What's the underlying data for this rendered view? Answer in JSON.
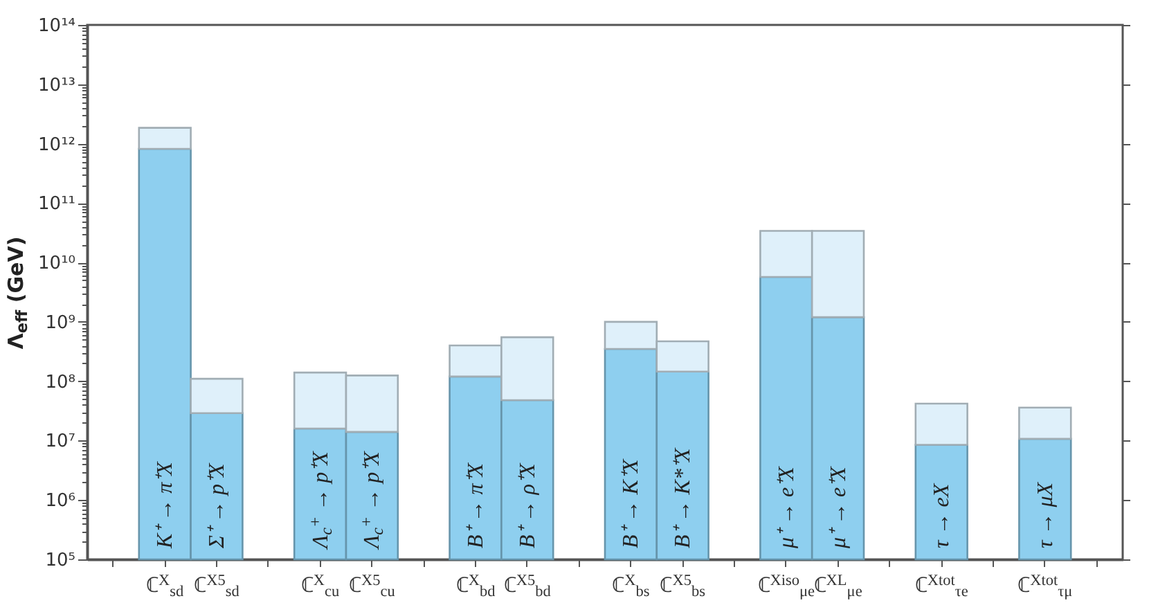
{
  "chart_data": {
    "type": "bar",
    "ylabel": "Λ$_{eff}$ (GeV)",
    "log": true,
    "categories": [
      null,
      "ℂ$^{X}$$_{sd}$",
      "ℂ$^{X5}$$_{sd}$",
      null,
      "ℂ$^{X}$$_{cu}$",
      "ℂ$^{X5}$$_{cu}$",
      null,
      "ℂ$^{X}$$_{bd}$",
      "ℂ$^{X5}$$_{bd}$",
      null,
      "ℂ$^{X}$$_{bs}$",
      "ℂ$^{X5}$$_{bs}$",
      null,
      "ℂ$^{Xiso}$$_{μe}$",
      "ℂ$^{XL}$$_{μe}$",
      null,
      "ℂ$^{Xtot}$$_{τe}$",
      null,
      "ℂ$^{Xtot}$$_{τμ}$",
      null
    ],
    "series": [
      {
        "color": "#8ecfef",
        "values": [
          null,
          820000000000.0,
          29000000.0,
          null,
          16000000.0,
          14000000.0,
          null,
          120000000.0,
          48000000.0,
          null,
          350000000.0,
          145000000.0,
          null,
          5700000000.0,
          1200000000.0,
          null,
          8500000.0,
          null,
          10700000.0,
          null
        ]
      },
      {
        "color": "#dff0fa",
        "values": [
          null,
          1030000000000.0,
          81000000.0,
          null,
          124000000.0,
          111000000.0,
          null,
          280000000.0,
          502000000.0,
          null,
          650000000.0,
          325000000.0,
          null,
          28300000000.0,
          32800000000.0,
          null,
          33500000.0,
          null,
          25300000.0,
          null
        ]
      }
    ],
    "stacked": true,
    "ylim": [
      100000.0,
      100000000000000.0
    ],
    "yticks": [
      {
        "value": 100000.0,
        "label": "10⁵"
      },
      {
        "value": 200000.0,
        "label": null
      },
      {
        "value": 300000.0,
        "label": null
      },
      {
        "value": 400000.0,
        "label": null
      },
      {
        "value": 500000.0,
        "label": null
      },
      {
        "value": 600000.0,
        "label": null
      },
      {
        "value": 700000.0,
        "label": null
      },
      {
        "value": 800000.0,
        "label": null
      },
      {
        "value": 900000.0,
        "label": null
      },
      {
        "value": 1000000.0,
        "label": "10⁶"
      },
      {
        "value": 2000000.0,
        "label": null
      },
      {
        "value": 3000000.0,
        "label": null
      },
      {
        "value": 4000000.0,
        "label": null
      },
      {
        "value": 5000000.0,
        "label": null
      },
      {
        "value": 6000000.0,
        "label": null
      },
      {
        "value": 7000000.0,
        "label": null
      },
      {
        "value": 8000000.0,
        "label": null
      },
      {
        "value": 9000000.0,
        "label": null
      },
      {
        "value": 10000000.0,
        "label": "10⁷"
      },
      {
        "value": 20000000.0,
        "label": null
      },
      {
        "value": 30000000.0,
        "label": null
      },
      {
        "value": 40000000.0,
        "label": null
      },
      {
        "value": 50000000.0,
        "label": null
      },
      {
        "value": 60000000.0,
        "label": null
      },
      {
        "value": 70000000.0,
        "label": null
      },
      {
        "value": 80000000.0,
        "label": null
      },
      {
        "value": 90000000.0,
        "label": null
      },
      {
        "value": 100000000.0,
        "label": "10⁸"
      },
      {
        "value": 200000000.0,
        "label": null
      },
      {
        "value": 300000000.0,
        "label": null
      },
      {
        "value": 400000000.0,
        "label": null
      },
      {
        "value": 500000000.0,
        "label": null
      },
      {
        "value": 600000000.0,
        "label": null
      },
      {
        "value": 700000000.0,
        "label": null
      },
      {
        "value": 800000000.0,
        "label": null
      },
      {
        "value": 900000000.0,
        "label": null
      },
      {
        "value": 1000000000.0,
        "label": "10⁹"
      },
      {
        "value": 2000000000.0,
        "label": null
      },
      {
        "value": 3000000000.0,
        "label": null
      },
      {
        "value": 4000000000.0,
        "label": null
      },
      {
        "value": 5000000000.0,
        "label": null
      },
      {
        "value": 6000000000.0,
        "label": null
      },
      {
        "value": 7000000000.0,
        "label": null
      },
      {
        "value": 8000000000.0,
        "label": null
      },
      {
        "value": 9000000000.0,
        "label": null
      },
      {
        "value": 10000000000.0,
        "label": "10¹⁰"
      },
      {
        "value": 20000000000.0,
        "label": null
      },
      {
        "value": 30000000000.0,
        "label": null
      },
      {
        "value": 40000000000.0,
        "label": null
      },
      {
        "value": 50000000000.0,
        "label": null
      },
      {
        "value": 60000000000.0,
        "label": null
      },
      {
        "value": 70000000000.0,
        "label": null
      },
      {
        "value": 80000000000.0,
        "label": null
      },
      {
        "value": 90000000000.0,
        "label": null
      },
      {
        "value": 100000000000.0,
        "label": "10¹¹"
      },
      {
        "value": 200000000000.0,
        "label": null
      },
      {
        "value": 300000000000.0,
        "label": null
      },
      {
        "value": 400000000000.0,
        "label": null
      },
      {
        "value": 500000000000.0,
        "label": null
      },
      {
        "value": 600000000000.0,
        "label": null
      },
      {
        "value": 700000000000.0,
        "label": null
      },
      {
        "value": 800000000000.0,
        "label": null
      },
      {
        "value": 900000000000.0,
        "label": null
      },
      {
        "value": 1000000000000.0,
        "label": "10¹²"
      },
      {
        "value": 2000000000000.0,
        "label": null
      },
      {
        "value": 3000000000000.0,
        "label": null
      },
      {
        "value": 4000000000000.0,
        "label": null
      },
      {
        "value": 5000000000000.0,
        "label": null
      },
      {
        "value": 6000000000000.0,
        "label": null
      },
      {
        "value": 7000000000000.0,
        "label": null
      },
      {
        "value": 8000000000000.0,
        "label": null
      },
      {
        "value": 9000000000000.0,
        "label": null
      },
      {
        "value": 10000000000000.0,
        "label": "10¹³"
      },
      {
        "value": 20000000000000.0,
        "label": null
      },
      {
        "value": 30000000000000.0,
        "label": null
      },
      {
        "value": 40000000000000.0,
        "label": null
      },
      {
        "value": 50000000000000.0,
        "label": null
      },
      {
        "value": 60000000000000.0,
        "label": null
      },
      {
        "value": 70000000000000.0,
        "label": null
      },
      {
        "value": 80000000000000.0,
        "label": null
      },
      {
        "value": 90000000000000.0,
        "label": null
      },
      {
        "value": 100000000000000.0,
        "label": "10¹⁴"
      }
    ],
    "annotations": [
      "K⁺ → π⁺X",
      "Σ⁺ → p⁺X",
      "Λ$_{c}$$^{+}$ → p⁺X",
      "Λ$_{c}$$^{+}$ → p⁺X",
      "B⁺ → π⁺X",
      "B⁺ → ρ⁺X",
      "B⁺ → K⁺X",
      "B⁺ → K*⁺X",
      "μ⁺ → e⁺X",
      "μ⁺ → e⁺X",
      "τ → eX",
      "τ → μX"
    ]
  }
}
